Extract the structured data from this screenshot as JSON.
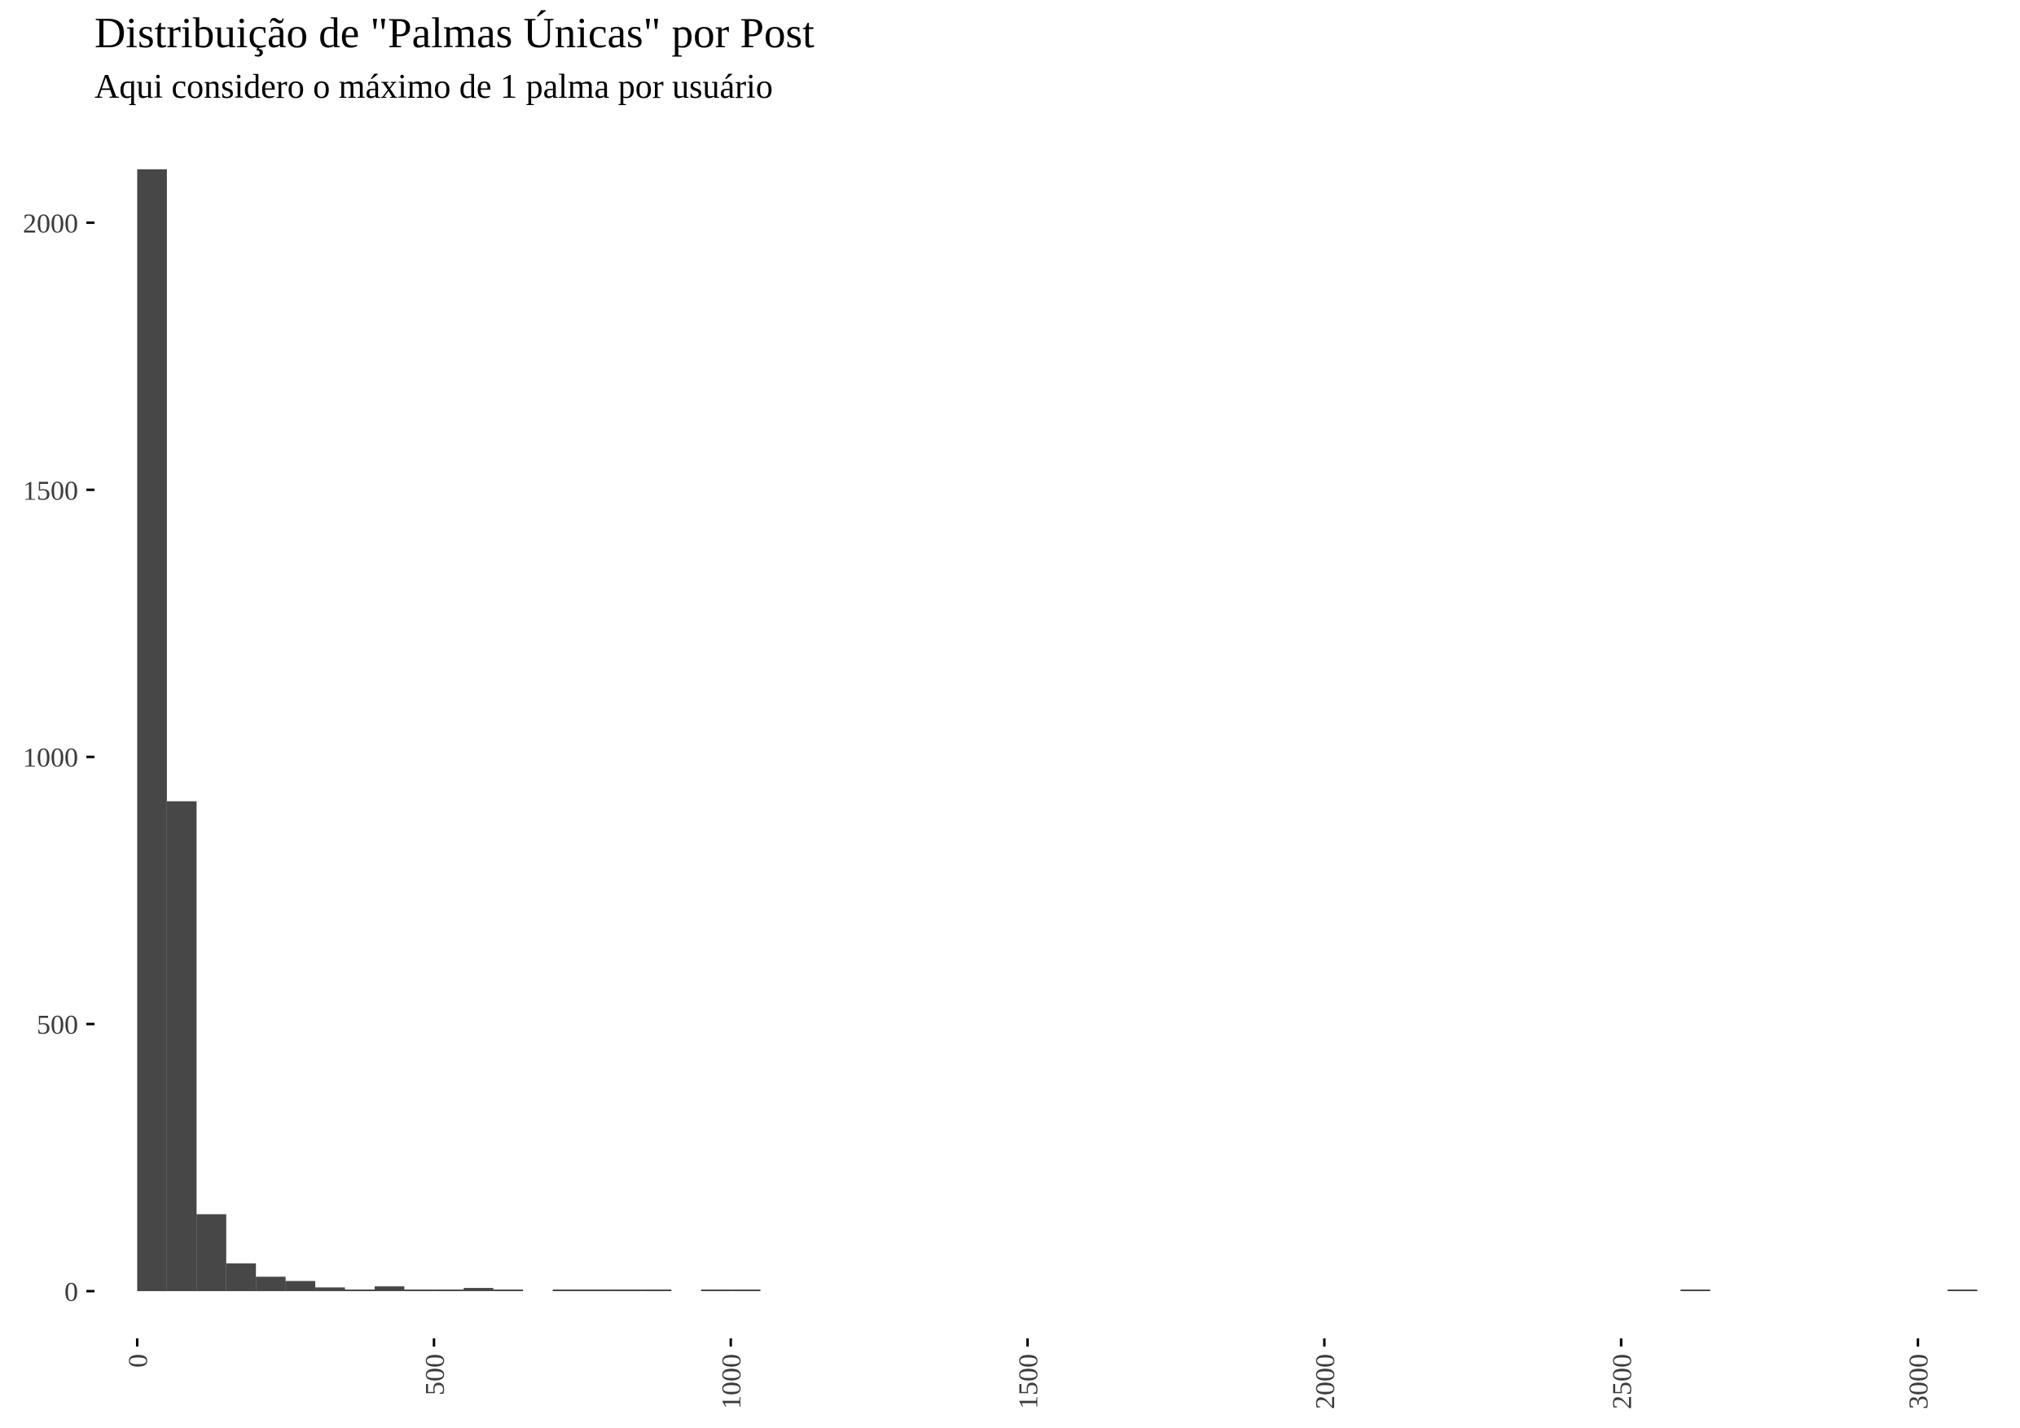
{
  "title": "Distribuição de \"Palmas Únicas\" por Post",
  "subtitle": "Aqui considero o máximo de 1 palma por usuário",
  "chart_data": {
    "type": "bar",
    "title": "Distribuição de \"Palmas Únicas\" por Post",
    "subtitle": "Aqui considero o máximo de 1 palma por usuário",
    "xlabel": "",
    "ylabel": "",
    "bin_width": 50,
    "x": [
      25,
      75,
      125,
      175,
      225,
      275,
      325,
      375,
      425,
      475,
      525,
      575,
      625,
      675,
      725,
      775,
      825,
      875,
      925,
      975,
      1025,
      2625,
      3075
    ],
    "values": [
      2100,
      917,
      144,
      52,
      27,
      19,
      7,
      3,
      9,
      1,
      1,
      6,
      1,
      0,
      3,
      1,
      1,
      1,
      0,
      1,
      1,
      1,
      1
    ],
    "xlim": [
      -50,
      3150
    ],
    "ylim": [
      0,
      2150
    ],
    "x_ticks": [
      0,
      500,
      1000,
      1500,
      2000,
      2500,
      3000
    ],
    "x_tick_labels": [
      "0",
      "500",
      "1000",
      "1500",
      "2000",
      "2500",
      "3000"
    ],
    "y_ticks": [
      0,
      500,
      1000,
      1500,
      2000
    ],
    "y_tick_labels": [
      "0",
      "500",
      "1000",
      "1500",
      "2000"
    ],
    "x_tick_label_rotation": "vertical",
    "grid": false,
    "legend": "none",
    "bar_color": "#474747",
    "tick_color": "#000000",
    "label_color": "#3b3b3b"
  }
}
